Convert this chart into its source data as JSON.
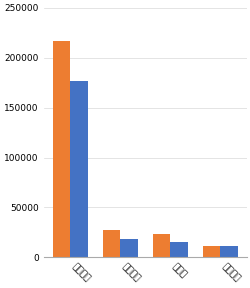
{
  "categories": [
    "小赢网金",
    "小牛在线",
    "投源网",
    "红岭创投"
  ],
  "series1": [
    217000,
    27000,
    23000,
    11000
  ],
  "series2": [
    177000,
    18000,
    15000,
    11000
  ],
  "color1": "#ED7D31",
  "color2": "#4472C4",
  "ylim": [
    0,
    250000
  ],
  "yticks": [
    0,
    50000,
    100000,
    150000,
    200000,
    250000
  ],
  "bar_width": 0.35,
  "figsize": [
    2.51,
    2.88
  ],
  "dpi": 100,
  "grid_color": "#D9D9D9",
  "tick_fontsize": 6.5,
  "label_fontsize": 7
}
